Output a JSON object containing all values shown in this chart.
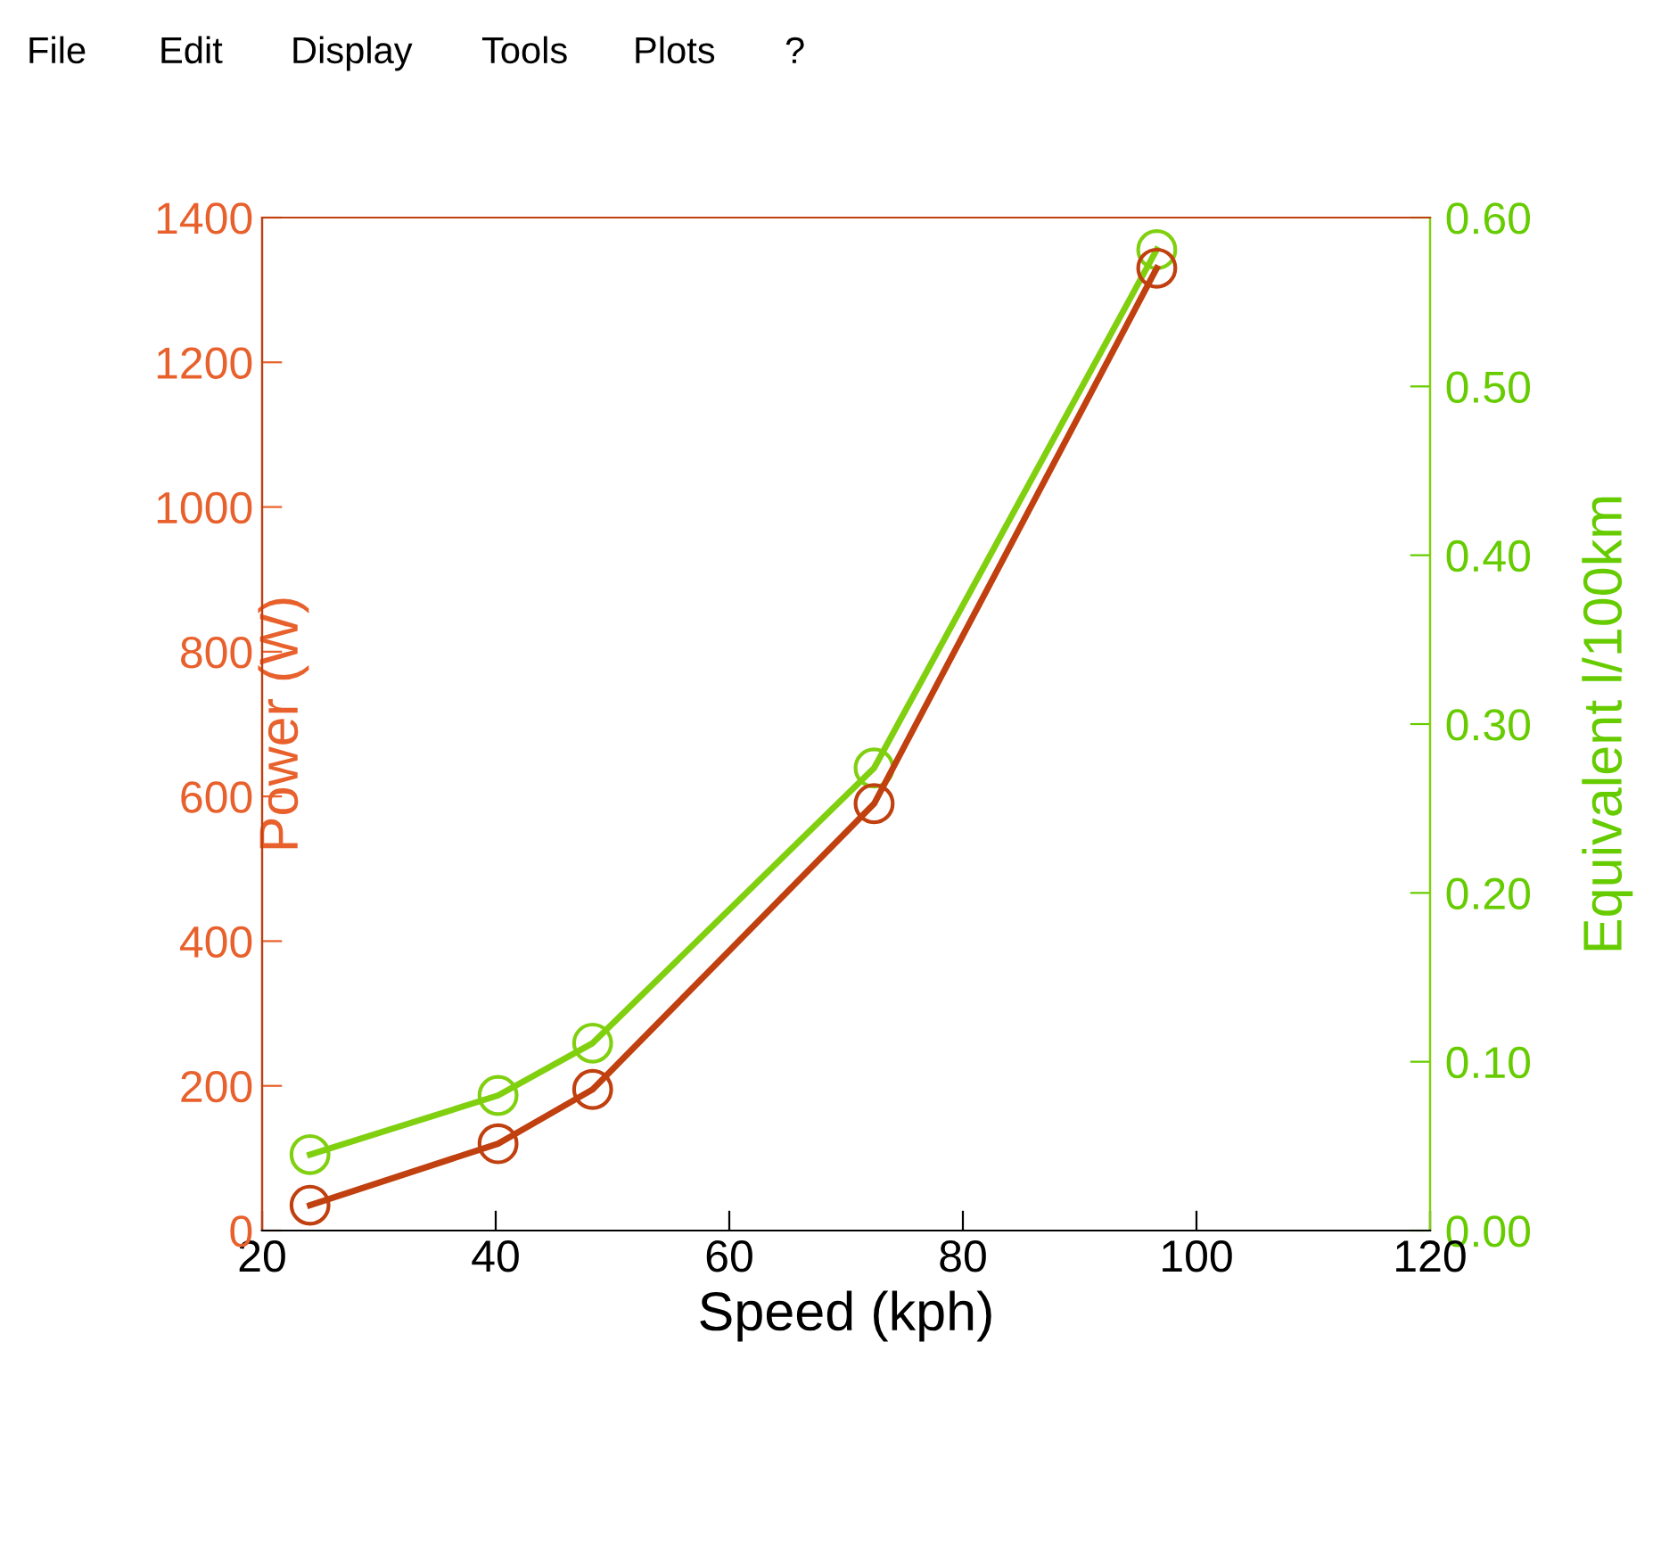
{
  "chart_data": {
    "type": "line",
    "xlabel": "Speed (kph)",
    "ylabel": "Power (W)",
    "y2label": "Equivalent l/100km",
    "annotations": [
      "File",
      "Edit",
      "Display",
      "Tools",
      "Plots",
      "?"
    ],
    "x": [
      24.1,
      40.2,
      48.3,
      72.4,
      96.6
    ],
    "series": [
      {
        "color": "#c0400f",
        "values": [
          35,
          120,
          195,
          590,
          1330
        ]
      },
      {
        "color": "#80d010",
        "axis": "y2",
        "values": [
          0.045,
          0.08,
          0.111,
          0.274,
          0.581
        ]
      }
    ],
    "xlim": [
      20,
      120
    ],
    "xticks": [
      20,
      40,
      60,
      80,
      100,
      120
    ],
    "ylim": [
      0,
      1400
    ],
    "yticks": [
      0,
      200,
      400,
      600,
      800,
      1000,
      1200,
      1400
    ],
    "y2lim": [
      0,
      0.6
    ],
    "y2ticks": [
      {
        "value": 0,
        "label": "0.00"
      },
      {
        "value": 0.1,
        "label": "0.10"
      },
      {
        "value": 0.2,
        "label": "0.20"
      },
      {
        "value": 0.3,
        "label": "0.30"
      },
      {
        "value": 0.4,
        "label": "0.40"
      },
      {
        "value": 0.5,
        "label": "0.50"
      },
      {
        "value": 0.6,
        "label": "0.60"
      }
    ],
    "marker": "circle",
    "line_style": "solid",
    "grid": false,
    "legend": false
  }
}
